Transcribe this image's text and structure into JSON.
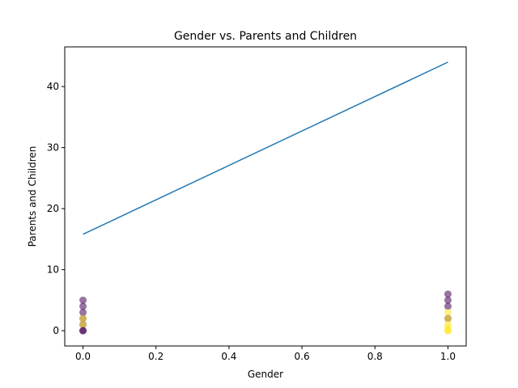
{
  "chart_data": {
    "type": "scatter",
    "title": "Gender vs. Parents and Children",
    "xlabel": "Gender",
    "ylabel": "Parents and Children",
    "xlim": [
      -0.05,
      1.05
    ],
    "ylim": [
      -2.5,
      46.5
    ],
    "xticks": [
      0.0,
      0.2,
      0.4,
      0.6,
      0.8,
      1.0
    ],
    "xtick_labels": [
      "0.0",
      "0.2",
      "0.4",
      "0.6",
      "0.8",
      "1.0"
    ],
    "yticks": [
      0,
      10,
      20,
      30,
      40
    ],
    "ytick_labels": [
      "0",
      "10",
      "20",
      "30",
      "40"
    ],
    "grid": false,
    "line": {
      "x": [
        0,
        1
      ],
      "y": [
        15.8,
        44.0
      ],
      "color": "#1f77b4"
    },
    "points": [
      {
        "x": 0,
        "y": 5,
        "color": "#440154"
      },
      {
        "x": 0,
        "y": 4,
        "color": "#440154"
      },
      {
        "x": 0,
        "y": 3,
        "color": "#440154"
      },
      {
        "x": 0,
        "y": 2,
        "color": "#440154"
      },
      {
        "x": 0,
        "y": 2,
        "color": "#fde725"
      },
      {
        "x": 0,
        "y": 1,
        "color": "#440154"
      },
      {
        "x": 0,
        "y": 1,
        "color": "#fde725"
      },
      {
        "x": 0,
        "y": 0,
        "color": "#440154"
      },
      {
        "x": 0,
        "y": 0,
        "color": "#440154"
      },
      {
        "x": 1,
        "y": 6,
        "color": "#440154"
      },
      {
        "x": 1,
        "y": 5,
        "color": "#440154"
      },
      {
        "x": 1,
        "y": 4,
        "color": "#440154"
      },
      {
        "x": 1,
        "y": 3,
        "color": "#fde725"
      },
      {
        "x": 1,
        "y": 2,
        "color": "#440154"
      },
      {
        "x": 1,
        "y": 2,
        "color": "#fde725"
      },
      {
        "x": 1,
        "y": 1,
        "color": "#fde725"
      },
      {
        "x": 1,
        "y": 0.5,
        "color": "#fde725"
      },
      {
        "x": 1,
        "y": 0,
        "color": "#fde725"
      },
      {
        "x": 1,
        "y": 0,
        "color": "#fde725"
      }
    ]
  }
}
